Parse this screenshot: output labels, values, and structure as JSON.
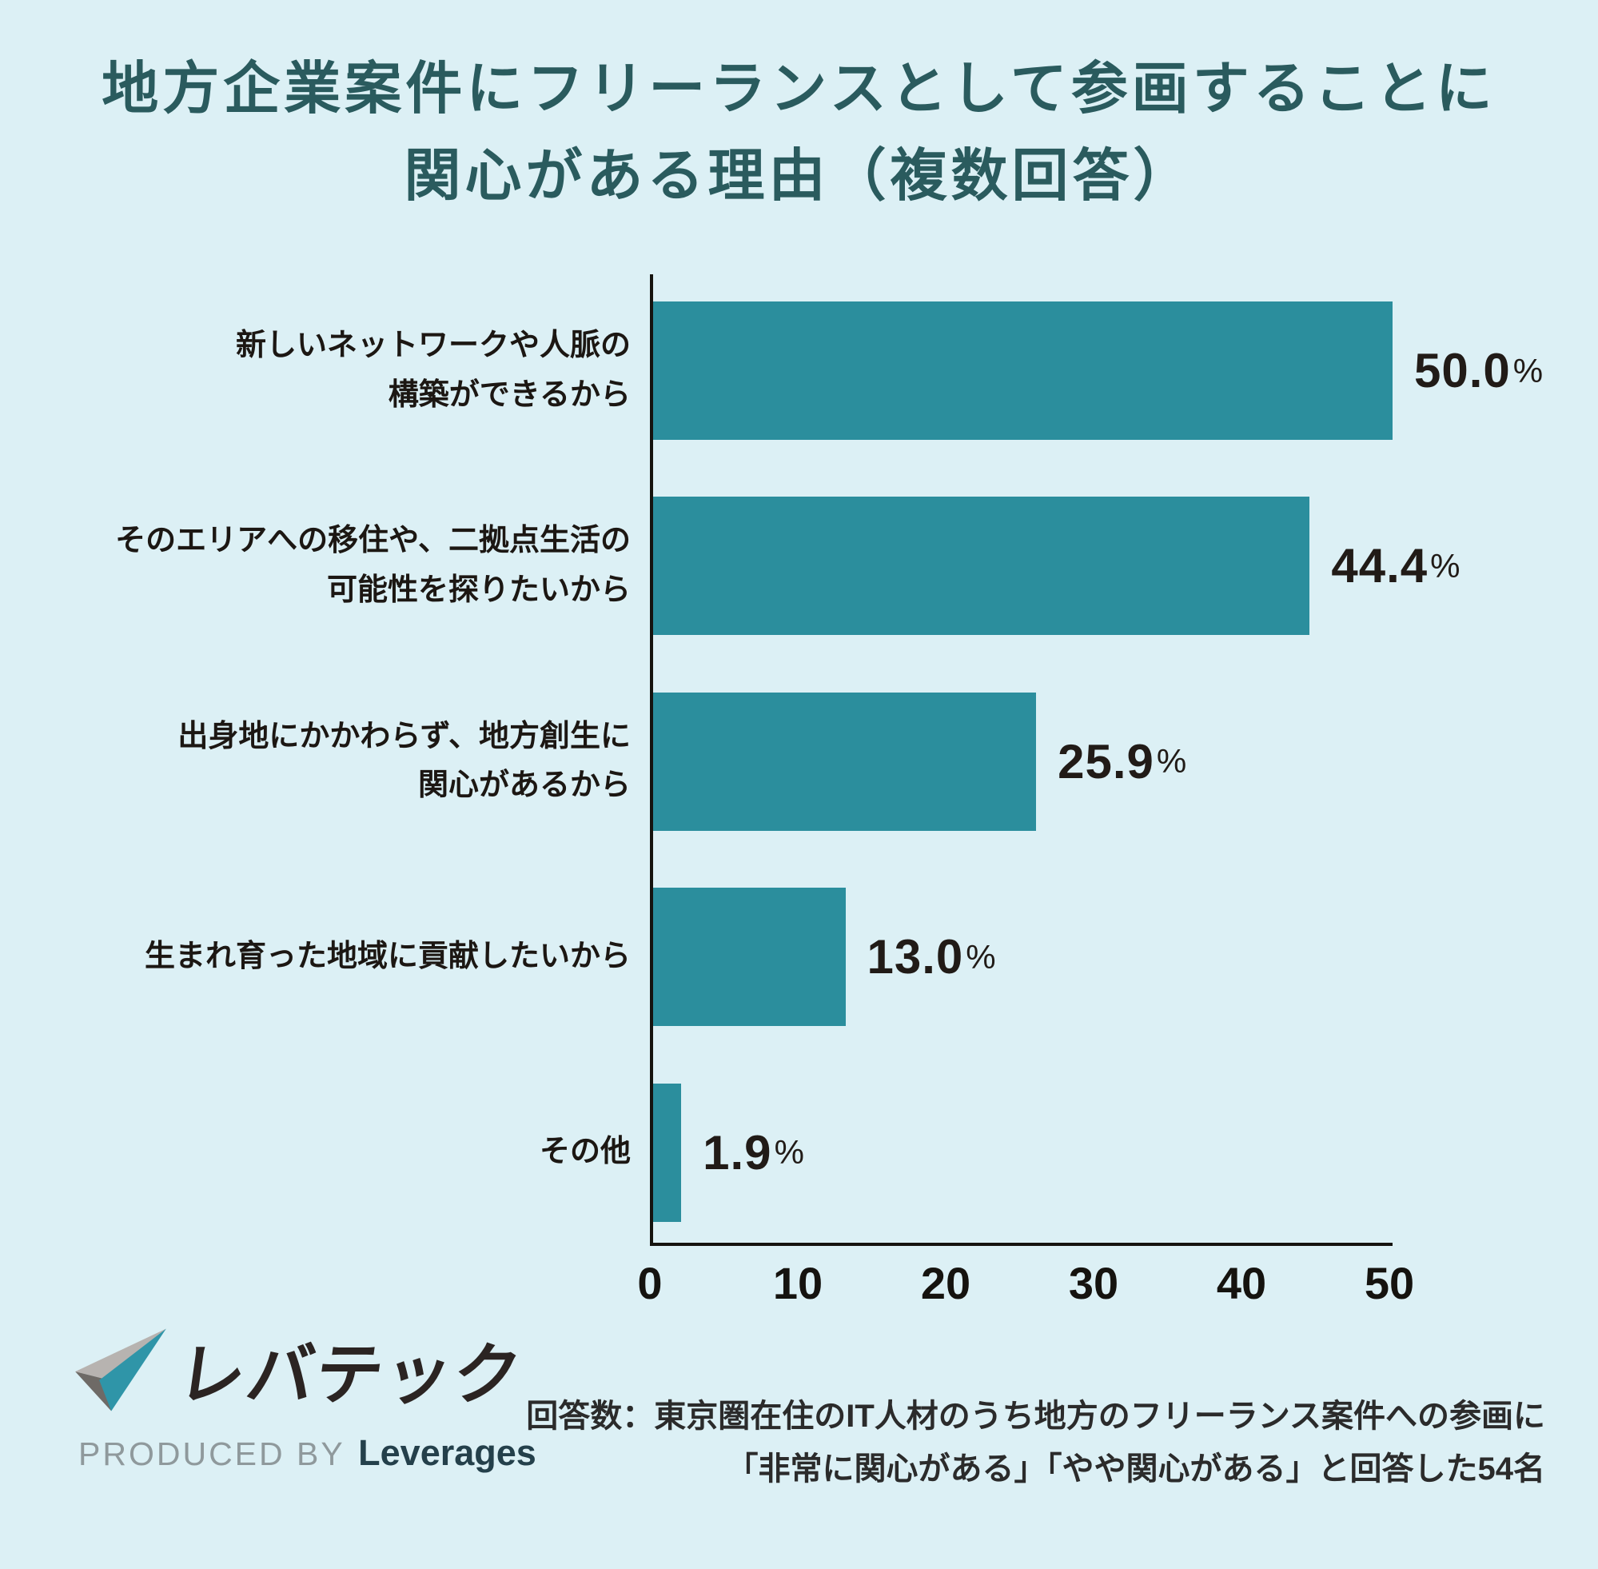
{
  "title": {
    "line1": "地方企業案件にフリーランスとして参画することに",
    "line2": "関心がある理由（複数回答）"
  },
  "chart_data": {
    "type": "bar",
    "orientation": "horizontal",
    "title": "地方企業案件にフリーランスとして参画することに関心がある理由（複数回答）",
    "categories": [
      "新しいネットワークや人脈の\n構築ができるから",
      "そのエリアへの移住や、二拠点生活の\n可能性を探りたいから",
      "出身地にかかわらず、地方創生に\n関心があるから",
      "生まれ育った地域に貢献したいから",
      "その他"
    ],
    "values": [
      50.0,
      44.4,
      25.9,
      13.0,
      1.9
    ],
    "value_labels": [
      "50.0",
      "44.4",
      "25.9",
      "13.0",
      "1.9"
    ],
    "unit": "%",
    "xlim": [
      0,
      50
    ],
    "x_ticks": [
      0,
      10,
      20,
      30,
      40,
      50
    ],
    "grid": false,
    "legend": false,
    "bar_color": "#2b8e9d",
    "background_color": "#dcf0f5",
    "title_color": "#2a5b5e"
  },
  "footer": {
    "logo": {
      "wordmark": "レバテック",
      "produced_by": "PRODUCED BY",
      "company": "Leverages",
      "mark_colors": {
        "light_gray": "#b7b3b0",
        "dark_gray": "#6e6a66",
        "teal": "#2f95a8"
      }
    },
    "caption_line1": "回答数：東京圏在住のIT人材のうち地方のフリーランス案件への参画に",
    "caption_line2": "「非常に関心がある」「やや関心がある」と回答した54名"
  }
}
